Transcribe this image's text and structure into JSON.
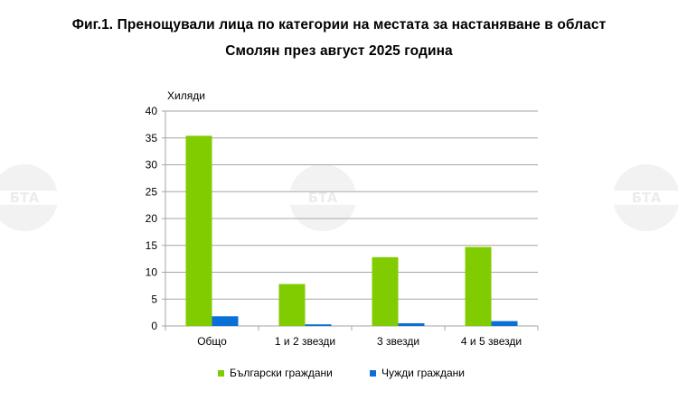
{
  "title_line1": "Фиг.1. Пренощували лица по категории на местата за настаняване в област",
  "title_line2": "Смолян през август 2025 година",
  "watermark_text": "БТА",
  "chart_data": {
    "type": "bar",
    "title": "Фиг.1. Пренощували лица по категории на местата за настаняване в област Смолян през август 2025 година",
    "ylabel": "Хиляди",
    "xlabel": "",
    "categories": [
      "Общо",
      "1 и 2 звезди",
      "3 звезди",
      "4 и 5 звезди"
    ],
    "ylim": [
      0,
      40
    ],
    "yticks": [
      0,
      5,
      10,
      15,
      20,
      25,
      30,
      35,
      40
    ],
    "grid": true,
    "legend_position": "bottom",
    "series": [
      {
        "name": "Български граждани",
        "color": "#80cc00",
        "values": [
          35.4,
          7.8,
          12.8,
          14.7
        ]
      },
      {
        "name": "Чужди граждани",
        "color": "#0a6fd6",
        "values": [
          1.8,
          0.3,
          0.5,
          0.9
        ]
      }
    ]
  }
}
